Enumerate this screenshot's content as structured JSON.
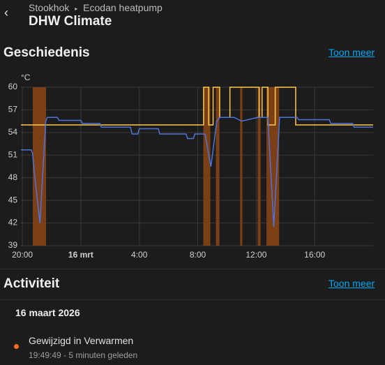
{
  "header": {
    "breadcrumb": [
      "Stookhok",
      "Ecodan heatpump"
    ],
    "title": "DHW Climate"
  },
  "history": {
    "title": "Geschiedenis",
    "link": "Toon meer"
  },
  "chart_data": {
    "type": "line",
    "y_label": "°C",
    "xlim": [
      -0.1,
      24
    ],
    "ylim": [
      39,
      60
    ],
    "xticks": [
      {
        "value": 0,
        "label": "20:00"
      },
      {
        "value": 4,
        "label": "16 mrt"
      },
      {
        "value": 8,
        "label": "4:00"
      },
      {
        "value": 12,
        "label": "8:00"
      },
      {
        "value": 16,
        "label": "12:00"
      },
      {
        "value": 20,
        "label": "16:00"
      }
    ],
    "yticks": [
      39,
      42,
      45,
      48,
      51,
      54,
      57,
      60
    ],
    "grid": true,
    "ranges_color": "#8b4513",
    "ranges": [
      [
        0.71,
        1.62
      ],
      [
        12.38,
        12.86
      ],
      [
        13.24,
        13.48
      ],
      [
        14.9,
        15.05
      ],
      [
        16.1,
        16.3
      ],
      [
        16.7,
        17.57
      ]
    ],
    "series": [
      {
        "color": "#ffc94d",
        "x": [
          -0.1,
          12.4,
          12.4,
          12.75,
          12.75,
          13.05,
          13.05,
          13.5,
          13.5,
          14.2,
          14.2,
          16.2,
          16.2,
          16.4,
          16.4,
          16.8,
          16.8,
          17.3,
          17.3,
          18.7,
          18.7,
          24
        ],
        "values": [
          55,
          55,
          60,
          60,
          55,
          55,
          60,
          60,
          56,
          56,
          60,
          60,
          56,
          56,
          60,
          60,
          55,
          55,
          60,
          60,
          55,
          55
        ]
      },
      {
        "color": "#4f74d9",
        "x": [
          -0.1,
          0.6,
          0.7,
          0.8,
          1.2,
          1.6,
          1.7,
          2.4,
          2.5,
          4.0,
          4.1,
          5.3,
          5.4,
          7.4,
          7.5,
          7.9,
          8.0,
          9.3,
          9.4,
          11.2,
          11.3,
          11.7,
          11.8,
          12.5,
          12.9,
          13.3,
          13.5,
          14.5,
          15.0,
          16.1,
          16.8,
          17.2,
          17.6,
          18.8,
          18.9,
          21.0,
          21.1,
          22.6,
          22.7,
          24
        ],
        "values": [
          51.7,
          51.7,
          51.2,
          49,
          42,
          55.5,
          56,
          56,
          55.6,
          55.6,
          55.2,
          55.2,
          54.7,
          54.7,
          53.8,
          53.8,
          54.5,
          54.5,
          53.8,
          53.8,
          53.2,
          53.2,
          53.8,
          53.8,
          49.5,
          55.5,
          56,
          56,
          55.5,
          56,
          56,
          41.5,
          56,
          56,
          55.7,
          55.7,
          55.2,
          55.2,
          54.7,
          54.7
        ]
      }
    ]
  },
  "activity": {
    "title": "Activiteit",
    "link": "Toon meer",
    "date": "16 maart 2026",
    "entries": [
      {
        "message": "Gewijzigd in Verwarmen",
        "time": "19:49:49 - 5 minuten geleden"
      }
    ]
  }
}
